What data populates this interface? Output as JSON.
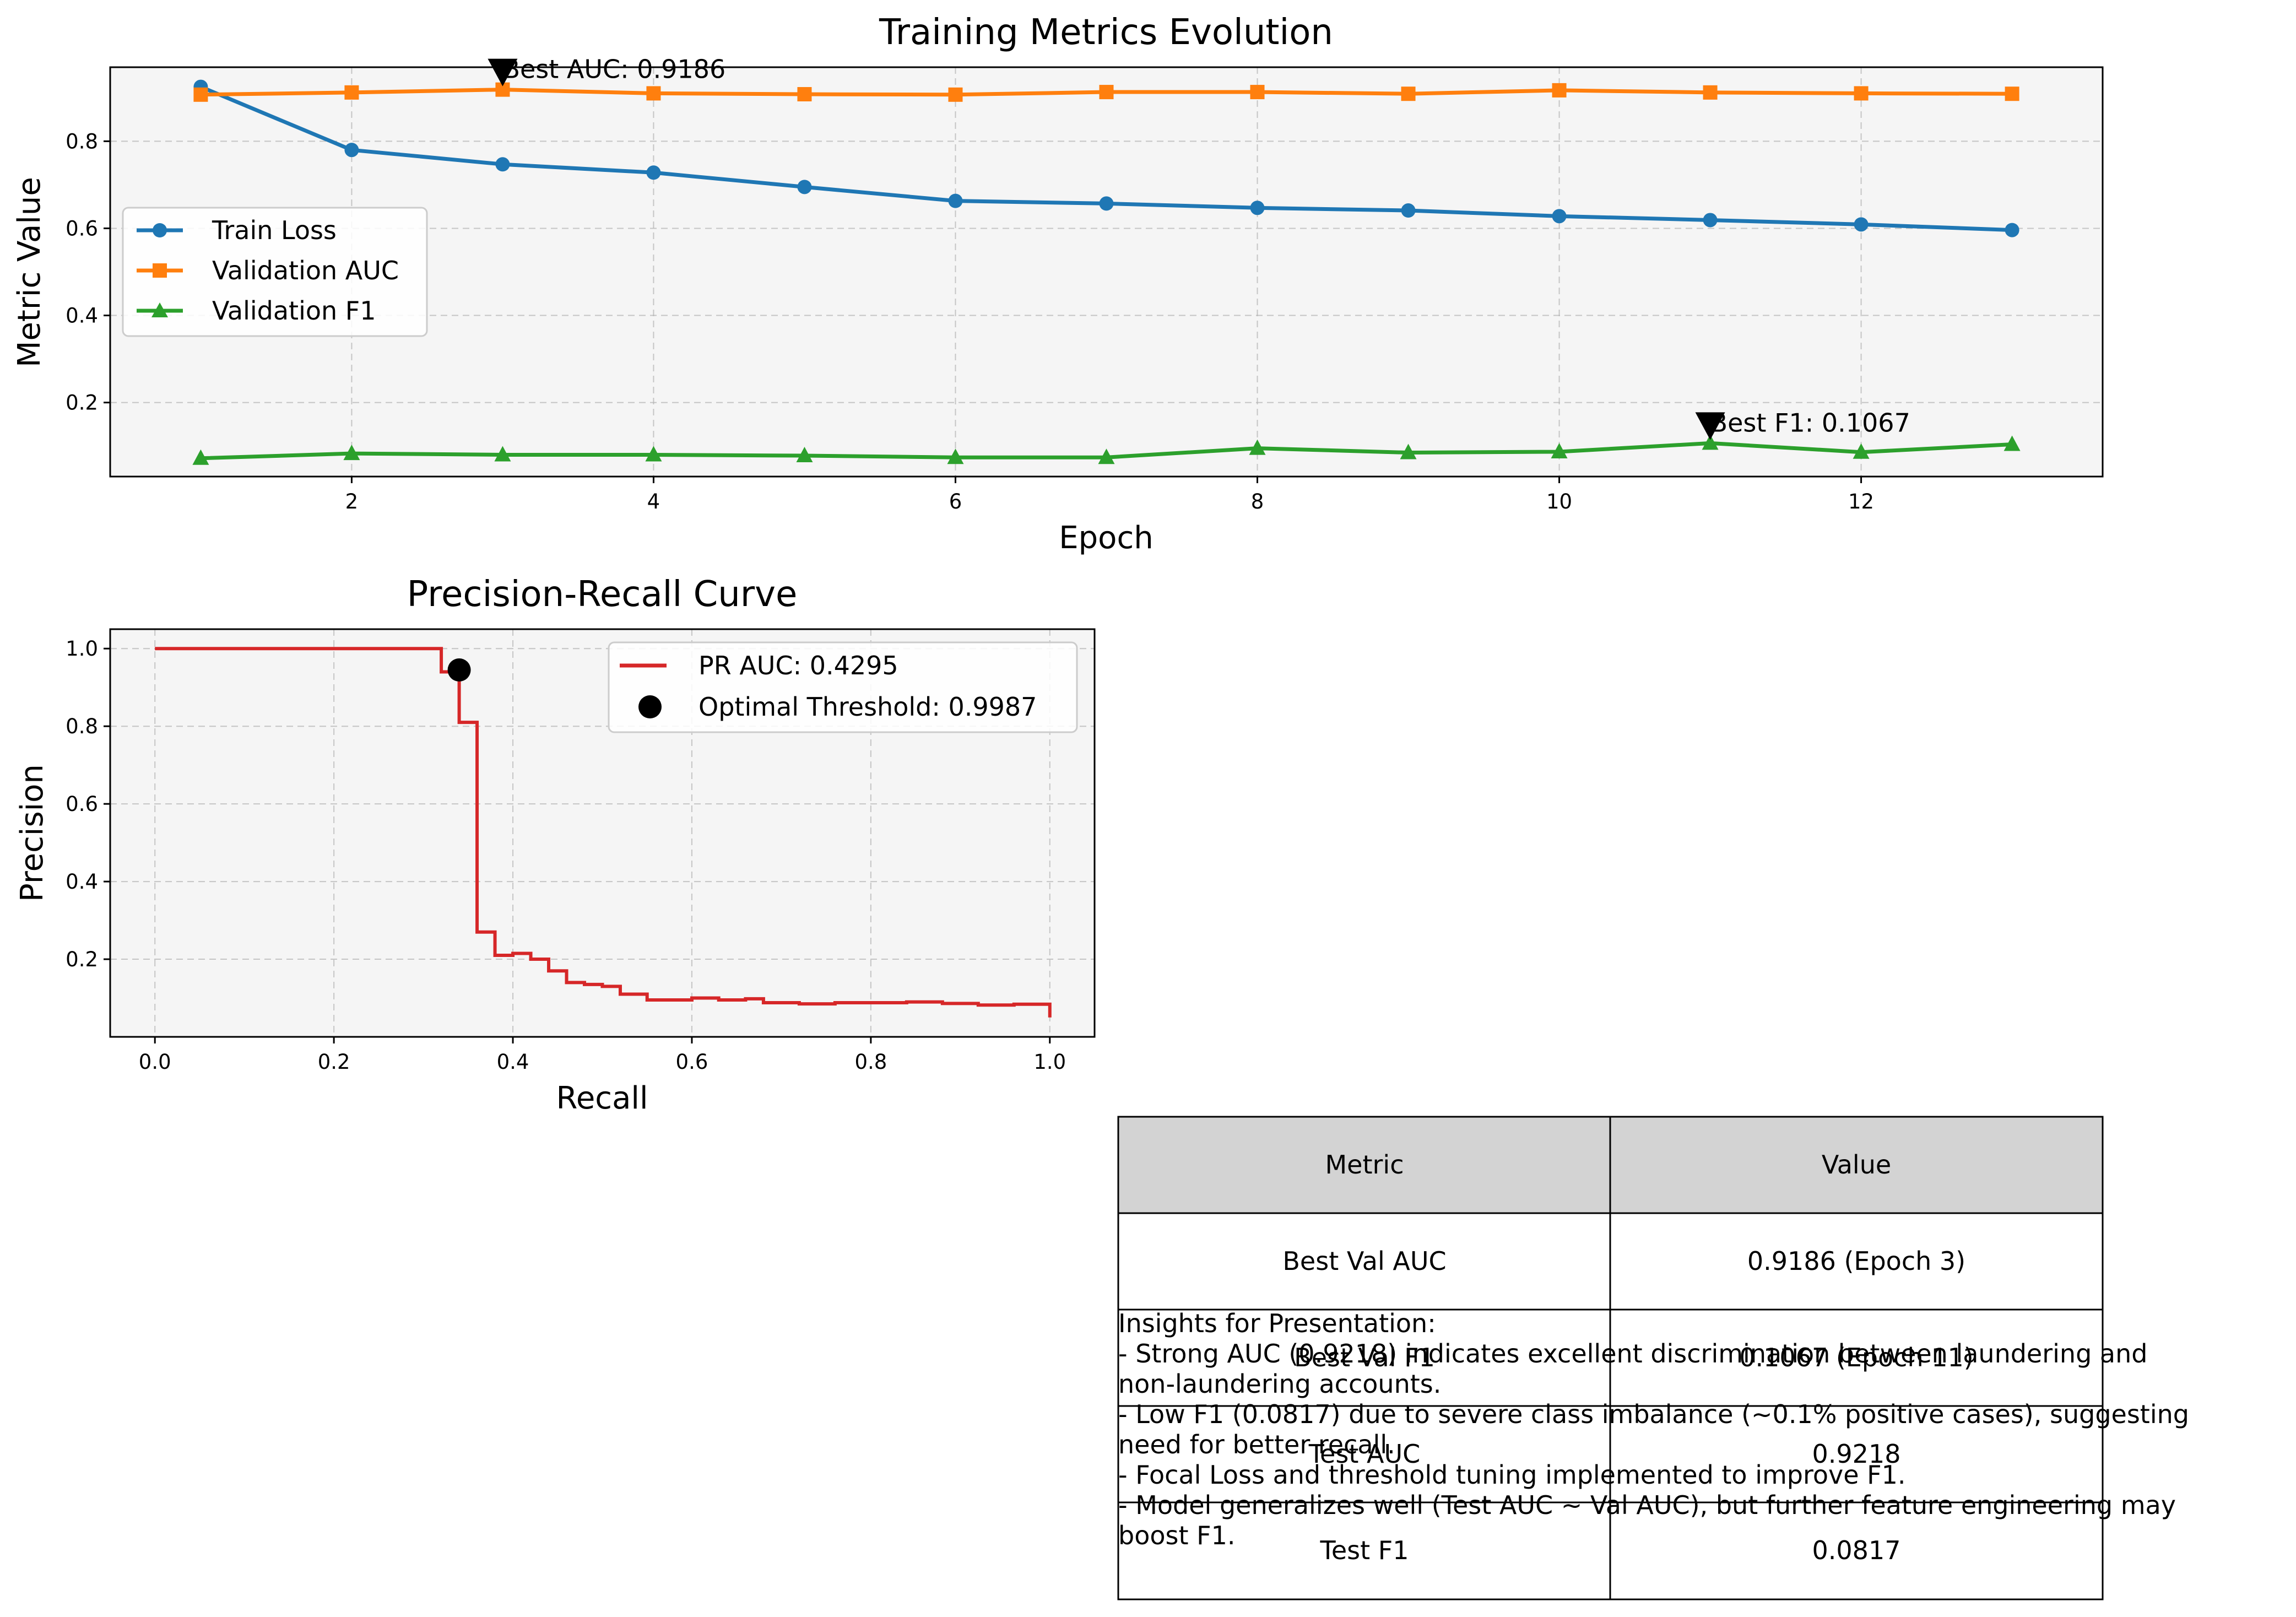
{
  "chart_data": [
    {
      "type": "line",
      "title": "Training Metrics Evolution",
      "xlabel": "Epoch",
      "ylabel": "Metric Value",
      "xlim": [
        0.4,
        13.6
      ],
      "ylim": [
        0.03,
        0.97
      ],
      "xticks": [
        "2",
        "4",
        "6",
        "8",
        "10",
        "12"
      ],
      "yticks": [
        "0.2",
        "0.4",
        "0.6",
        "0.8"
      ],
      "grid": true,
      "legend": "center-left",
      "x": [
        1,
        2,
        3,
        4,
        5,
        6,
        7,
        8,
        9,
        10,
        11,
        12,
        13
      ],
      "series": [
        {
          "name": "Train Loss",
          "color": "#1f77b4",
          "marker": "circle",
          "values": [
            0.925,
            0.78,
            0.747,
            0.728,
            0.695,
            0.663,
            0.657,
            0.647,
            0.641,
            0.628,
            0.619,
            0.609,
            0.596
          ]
        },
        {
          "name": "Validation AUC",
          "color": "#ff7f0e",
          "marker": "square",
          "values": [
            0.907,
            0.912,
            0.9186,
            0.91,
            0.908,
            0.907,
            0.913,
            0.913,
            0.909,
            0.917,
            0.912,
            0.91,
            0.909
          ]
        },
        {
          "name": "Validation F1",
          "color": "#2ca02c",
          "marker": "triangle",
          "values": [
            0.072,
            0.083,
            0.08,
            0.08,
            0.078,
            0.074,
            0.074,
            0.095,
            0.085,
            0.087,
            0.1067,
            0.086,
            0.104
          ]
        }
      ],
      "annotations": [
        {
          "text": "Best AUC: 0.9186",
          "x": 3,
          "y": 0.9186
        },
        {
          "text": "Best F1: 0.1067",
          "x": 11,
          "y": 0.1067
        }
      ]
    },
    {
      "type": "line",
      "title": "Precision-Recall Curve",
      "xlabel": "Recall",
      "ylabel": "Precision",
      "xlim": [
        -0.05,
        1.05
      ],
      "ylim": [
        0.0,
        1.05
      ],
      "xticks": [
        "0.0",
        "0.2",
        "0.4",
        "0.6",
        "0.8",
        "1.0"
      ],
      "yticks": [
        "0.2",
        "0.4",
        "0.6",
        "0.8",
        "1.0"
      ],
      "grid": true,
      "legend": "top-right",
      "series": [
        {
          "name": "PR AUC: 0.4295",
          "color": "#d62728",
          "points": [
            [
              0.0,
              1.0
            ],
            [
              0.32,
              1.0
            ],
            [
              0.32,
              0.94
            ],
            [
              0.34,
              0.94
            ],
            [
              0.34,
              0.81
            ],
            [
              0.36,
              0.81
            ],
            [
              0.36,
              0.27
            ],
            [
              0.38,
              0.27
            ],
            [
              0.38,
              0.21
            ],
            [
              0.4,
              0.21
            ],
            [
              0.4,
              0.215
            ],
            [
              0.42,
              0.215
            ],
            [
              0.42,
              0.2
            ],
            [
              0.44,
              0.2
            ],
            [
              0.44,
              0.17
            ],
            [
              0.46,
              0.17
            ],
            [
              0.46,
              0.14
            ],
            [
              0.48,
              0.14
            ],
            [
              0.48,
              0.135
            ],
            [
              0.5,
              0.135
            ],
            [
              0.5,
              0.13
            ],
            [
              0.52,
              0.13
            ],
            [
              0.52,
              0.11
            ],
            [
              0.55,
              0.11
            ],
            [
              0.55,
              0.095
            ],
            [
              0.6,
              0.095
            ],
            [
              0.6,
              0.1
            ],
            [
              0.63,
              0.1
            ],
            [
              0.63,
              0.095
            ],
            [
              0.66,
              0.095
            ],
            [
              0.66,
              0.098
            ],
            [
              0.68,
              0.098
            ],
            [
              0.68,
              0.088
            ],
            [
              0.72,
              0.088
            ],
            [
              0.72,
              0.085
            ],
            [
              0.76,
              0.085
            ],
            [
              0.76,
              0.088
            ],
            [
              0.84,
              0.088
            ],
            [
              0.84,
              0.09
            ],
            [
              0.88,
              0.09
            ],
            [
              0.88,
              0.086
            ],
            [
              0.92,
              0.086
            ],
            [
              0.92,
              0.082
            ],
            [
              0.96,
              0.082
            ],
            [
              0.96,
              0.084
            ],
            [
              1.0,
              0.084
            ],
            [
              1.0,
              0.05
            ]
          ]
        },
        {
          "name": "Optimal Threshold: 0.9987",
          "color": "#000000",
          "marker": "circle",
          "points": [
            [
              0.34,
              0.945
            ]
          ]
        }
      ]
    },
    {
      "type": "table",
      "columns": [
        "Metric",
        "Value"
      ],
      "header_color": "#d3d3d3",
      "rows": [
        [
          "Best Val AUC",
          "0.9186 (Epoch 3)"
        ],
        [
          "Best Val F1",
          "0.1067 (Epoch 11)"
        ],
        [
          "Test AUC",
          "0.9218"
        ],
        [
          "Test F1",
          "0.0817"
        ]
      ]
    }
  ],
  "insights": [
    "Insights for Presentation:",
    "- Strong AUC (0.9218) indicates excellent discrimination between laundering and",
    "non-laundering accounts.",
    "- Low F1 (0.0817) due to severe class imbalance (~0.1% positive cases), suggesting",
    "need for better recall.",
    "- Focal Loss and threshold tuning implemented to improve F1.",
    "- Model generalizes well (Test AUC ~ Val AUC), but further feature engineering may",
    "boost F1."
  ]
}
